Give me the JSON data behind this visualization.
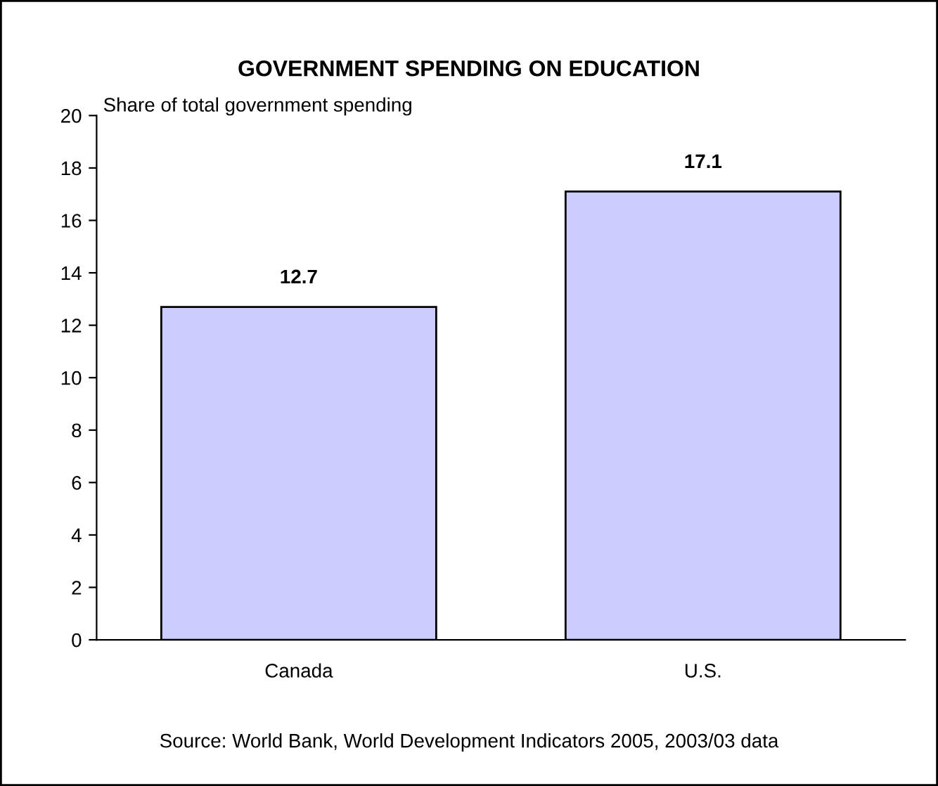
{
  "chart_data": {
    "type": "bar",
    "title": "GOVERNMENT SPENDING ON EDUCATION",
    "ylabel": "Share of total government spending",
    "categories": [
      "Canada",
      "U.S."
    ],
    "values": [
      12.7,
      17.1
    ],
    "color": "#ccccff",
    "ylim": [
      0,
      20
    ],
    "yticks": [
      0,
      2,
      4,
      6,
      8,
      10,
      12,
      14,
      16,
      18,
      20
    ],
    "grid": false,
    "data_labels": true,
    "annotations": [
      "Source: World Bank, World Development Indicators 2005, 2003/03 data"
    ]
  }
}
